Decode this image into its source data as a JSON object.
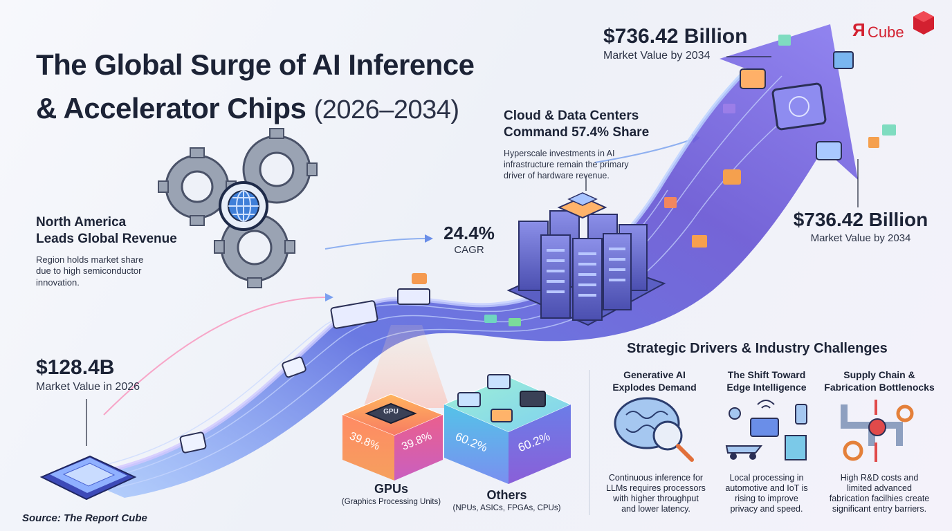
{
  "title_line1": "The Global Surge of AI Inference",
  "title_line2": "& Accelerator Chips",
  "title_years": "(2026–2034)",
  "logo": {
    "mark": "Я",
    "word": "Cube"
  },
  "start_value": {
    "value": "$128.4B",
    "label": "Market Value in 2026"
  },
  "top_value": {
    "value": "$736.42 Billion",
    "label": "Market Value by 2034"
  },
  "right_value": {
    "value": "$736.42 Billion",
    "label": "Market Value by 2034"
  },
  "cagr": {
    "value": "24.4%",
    "label": "CAGR"
  },
  "north_america": {
    "heading_line1": "North America",
    "heading_line2": "Leads Global Revenue",
    "body_line1": "Region holds market share",
    "body_line2": "due to high semiconductor",
    "body_line3": "innovation."
  },
  "cloud": {
    "heading_line1": "Cloud & Data Centers",
    "heading_line2": "Command 57.4% Share",
    "body_line1": "Hyperscale investments in AI",
    "body_line2": "infrastructure remain the primary",
    "body_line3": "driver of hardware revenue."
  },
  "segments": {
    "gpu": {
      "chip_label": "GPU",
      "pct": "39.8%",
      "name": "GPUs",
      "desc": "(Graphics Processing Units)",
      "share": 39.8
    },
    "others": {
      "pct": "60.2%",
      "name": "Others",
      "desc": "(NPUs, ASICs, FPGAs, CPUs)",
      "share": 60.2
    }
  },
  "drivers": {
    "title": "Strategic Drivers & Industry Challenges",
    "items": [
      {
        "h1": "Generative AI",
        "h2": "Explodes Demand",
        "icon": "brain-chip-icon",
        "t1": "Continuous inference for",
        "t2": "LLMs requires processors",
        "t3": "with higher throughput",
        "t4": "and lower latency."
      },
      {
        "h1": "The Shift Toward",
        "h2": "Edge Intelligence",
        "icon": "edge-devices-icon",
        "t1": "Local processing in",
        "t2": "automotive and IoT is",
        "t3": "rising to improve",
        "t4": "privacy and speed."
      },
      {
        "h1": "Supply Chain &",
        "h2": "Fabrication Bottlenocks",
        "icon": "pipes-gears-icon",
        "t1": "High R&D costs and",
        "t2": "limited advanced",
        "t3": "fabrication facilhies create",
        "t4": "significant entry barriers."
      }
    ]
  },
  "source": "Source: The Report Cube",
  "colors": {
    "ink": "#1c2336",
    "purple": "#6b5bd6",
    "blue": "#4a7fe0",
    "orange": "#f2994a",
    "pink": "#e85d8a",
    "teal": "#2bb5a8",
    "red": "#d32030"
  }
}
